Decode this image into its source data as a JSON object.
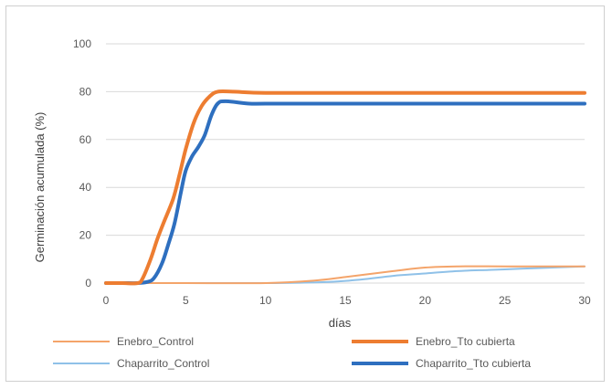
{
  "chart_data": {
    "type": "line",
    "xlabel": "días",
    "ylabel": "Germinación acumulada (%)",
    "xlim": [
      0,
      30
    ],
    "ylim": [
      0,
      100
    ],
    "x_ticks": [
      0,
      5,
      10,
      15,
      20,
      25,
      30
    ],
    "y_ticks": [
      0,
      20,
      40,
      60,
      80,
      100
    ],
    "grid": true,
    "legend_position": "bottom",
    "series": [
      {
        "name": "Enebro_Control",
        "color": "#f4a46a",
        "width": 2,
        "points": [
          [
            0,
            0
          ],
          [
            1,
            0
          ],
          [
            2,
            0
          ],
          [
            5,
            0
          ],
          [
            10,
            0
          ],
          [
            13,
            1
          ],
          [
            15,
            2.5
          ],
          [
            18,
            5
          ],
          [
            20,
            6.5
          ],
          [
            22,
            7
          ],
          [
            25,
            7
          ],
          [
            28,
            7
          ],
          [
            30,
            7
          ]
        ]
      },
      {
        "name": "Enebro_Tto cubierta",
        "color": "#ed7d31",
        "width": 4,
        "points": [
          [
            0,
            0
          ],
          [
            1,
            0
          ],
          [
            2,
            0
          ],
          [
            2.3,
            2
          ],
          [
            2.8,
            10
          ],
          [
            3.2,
            18
          ],
          [
            3.6,
            25
          ],
          [
            4.2,
            35
          ],
          [
            4.6,
            45
          ],
          [
            5,
            56
          ],
          [
            5.5,
            67
          ],
          [
            6,
            74
          ],
          [
            6.5,
            78
          ],
          [
            7,
            80
          ],
          [
            8,
            80
          ],
          [
            10,
            79.5
          ],
          [
            15,
            79.5
          ],
          [
            20,
            79.5
          ],
          [
            25,
            79.5
          ],
          [
            30,
            79.5
          ]
        ]
      },
      {
        "name": "Chaparrito_Control",
        "color": "#8fc1e8",
        "width": 2,
        "points": [
          [
            0,
            0
          ],
          [
            5,
            0
          ],
          [
            10,
            0
          ],
          [
            14,
            0.5
          ],
          [
            16,
            1.5
          ],
          [
            18,
            3
          ],
          [
            20,
            4
          ],
          [
            22,
            5
          ],
          [
            24,
            5.5
          ],
          [
            26,
            6
          ],
          [
            28,
            6.5
          ],
          [
            30,
            7
          ]
        ]
      },
      {
        "name": "Chaparrito_Tto cubierta",
        "color": "#2e6fbf",
        "width": 4,
        "points": [
          [
            0,
            0
          ],
          [
            1,
            0
          ],
          [
            2,
            0
          ],
          [
            2.6,
            0.5
          ],
          [
            3,
            2
          ],
          [
            3.5,
            8
          ],
          [
            3.9,
            16
          ],
          [
            4.3,
            25
          ],
          [
            4.7,
            38
          ],
          [
            5,
            47
          ],
          [
            5.4,
            53
          ],
          [
            5.8,
            57
          ],
          [
            6.2,
            62
          ],
          [
            6.6,
            70
          ],
          [
            7,
            75
          ],
          [
            7.5,
            76
          ],
          [
            9,
            75
          ],
          [
            10,
            75
          ],
          [
            15,
            75
          ],
          [
            20,
            75
          ],
          [
            25,
            75
          ],
          [
            30,
            75
          ]
        ]
      }
    ]
  }
}
